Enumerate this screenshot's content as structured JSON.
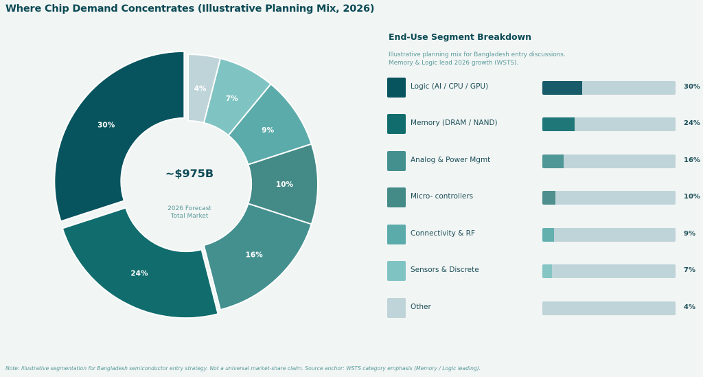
{
  "title": "Where Chip Demand Concentrates  (Illustrative Planning Mix, 2026)",
  "center": {
    "value": "~$975B",
    "sub_line1": "2026 Forecast",
    "sub_line2": "Total Market"
  },
  "panel": {
    "title": "End-Use Segment Breakdown",
    "subtitle_line1": "Illustrative planning mix for Bangladesh entry discussions.",
    "subtitle_line2": "Memory & Logic lead 2026 growth (WSTS)."
  },
  "note": "Note: Illustrative segmentation for Bangladesh semiconductor entry strategy. Not a universal market-share claim.  Source anchor: WSTS category emphasis (Memory / Logic leading).",
  "chart_data": {
    "type": "pie",
    "variant": "donut",
    "title": "Where Chip Demand Concentrates  (Illustrative Planning Mix, 2026)",
    "center_label": "~$975B",
    "direction": "counter-clockwise from top",
    "exploded": [
      "Logic (AI / CPU / GPU)",
      "Memory (DRAM / NAND)"
    ],
    "categories": [
      "Logic (AI / CPU / GPU)",
      "Memory (DRAM / NAND)",
      "Analog & Power Mgmt",
      "Micro- controllers",
      "Connectivity & RF",
      "Sensors & Discrete",
      "Other"
    ],
    "values": [
      30,
      24,
      16,
      10,
      9,
      7,
      4
    ],
    "labels": [
      "30%",
      "24%",
      "16%",
      "10%",
      "9%",
      "7%",
      "4%"
    ],
    "colors": [
      "#07535e",
      "#116d6d",
      "#43908f",
      "#448a87",
      "#5cabab",
      "#7fc4c3",
      "#bfd4d8"
    ],
    "bar_colors": [
      "#175c68",
      "#207777",
      "#4f9796",
      "#4f8f8d",
      "#64b0af",
      "#85c5c4",
      "#bfd4d8"
    ],
    "legend": "right"
  }
}
